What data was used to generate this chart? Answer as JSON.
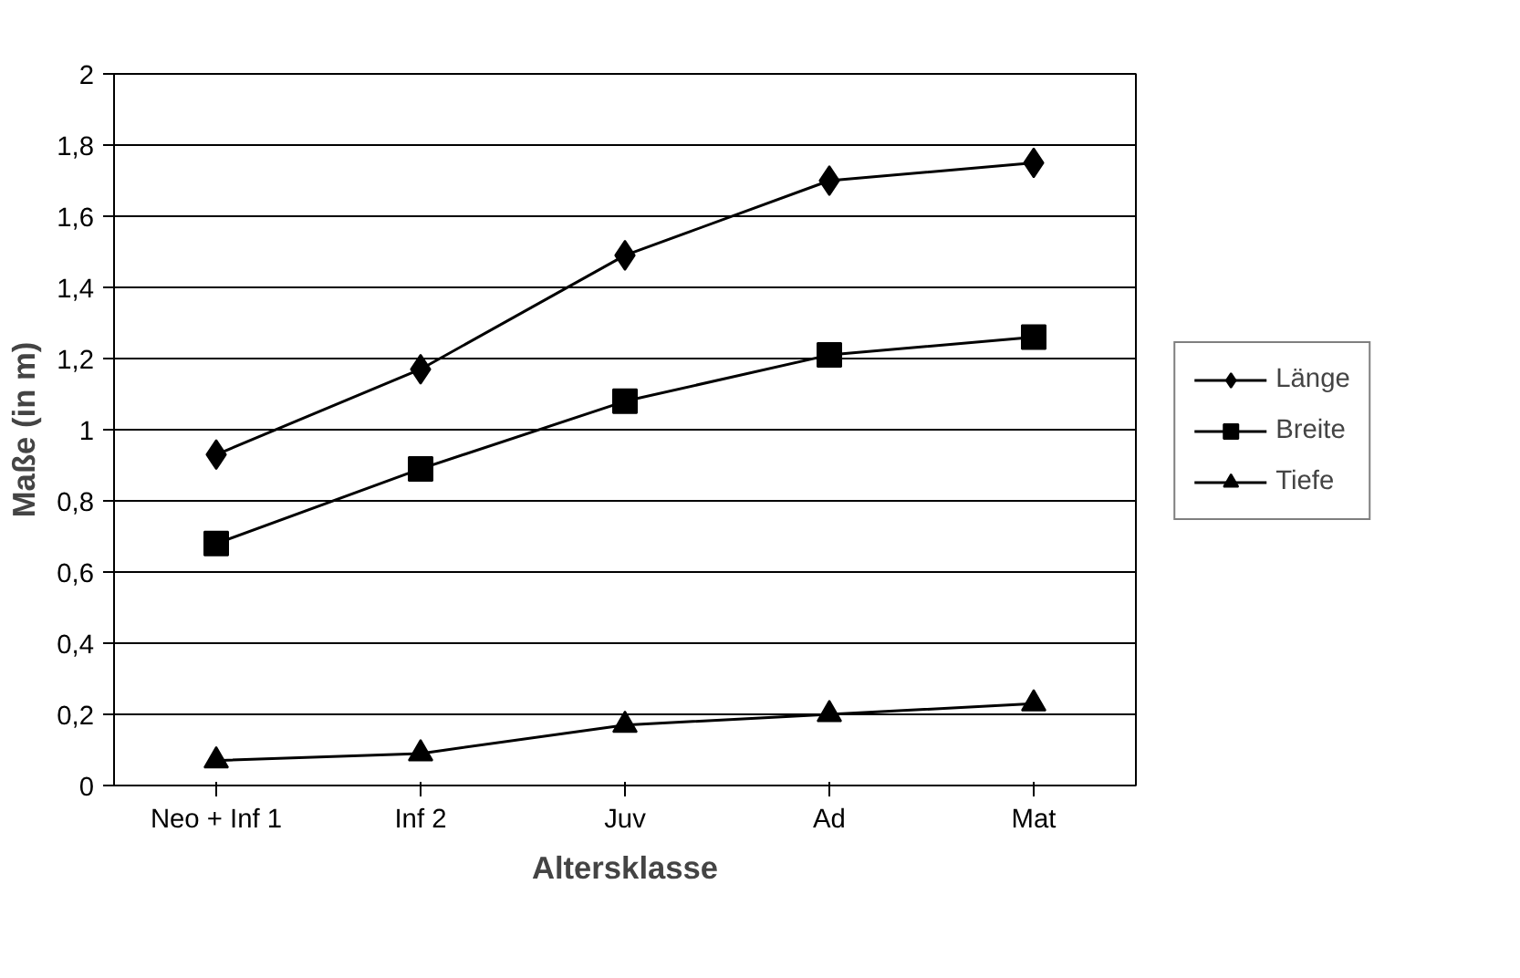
{
  "chart_data": {
    "type": "line",
    "xlabel": "Altersklasse",
    "ylabel": "Maße (in m)",
    "categories": [
      "Neo + Inf 1",
      "Inf 2",
      "Juv",
      "Ad",
      "Mat"
    ],
    "series": [
      {
        "name": "Länge",
        "color": "#000000",
        "marker": "diamond",
        "values": [
          0.93,
          1.17,
          1.49,
          1.7,
          1.75
        ]
      },
      {
        "name": "Breite",
        "color": "#000000",
        "marker": "square",
        "values": [
          0.68,
          0.89,
          1.08,
          1.21,
          1.26
        ]
      },
      {
        "name": "Tiefe",
        "color": "#000000",
        "marker": "triangle",
        "values": [
          0.07,
          0.09,
          0.17,
          0.2,
          0.23
        ]
      }
    ],
    "ylim": [
      0,
      2
    ],
    "yticks": [
      0,
      {
        "value": 0.2,
        "label": "0,2"
      },
      {
        "value": 0.4,
        "label": "0,4"
      },
      {
        "value": 0.6,
        "label": "0,6"
      },
      {
        "value": 0.8,
        "label": "0,8"
      },
      1,
      {
        "value": 1.2,
        "label": "1,2"
      },
      {
        "value": 1.4,
        "label": "1,4"
      },
      {
        "value": 1.6,
        "label": "1,6"
      },
      {
        "value": 1.8,
        "label": "1,8"
      },
      2
    ],
    "grid": "y",
    "legend": "right",
    "line_style": "solid"
  }
}
